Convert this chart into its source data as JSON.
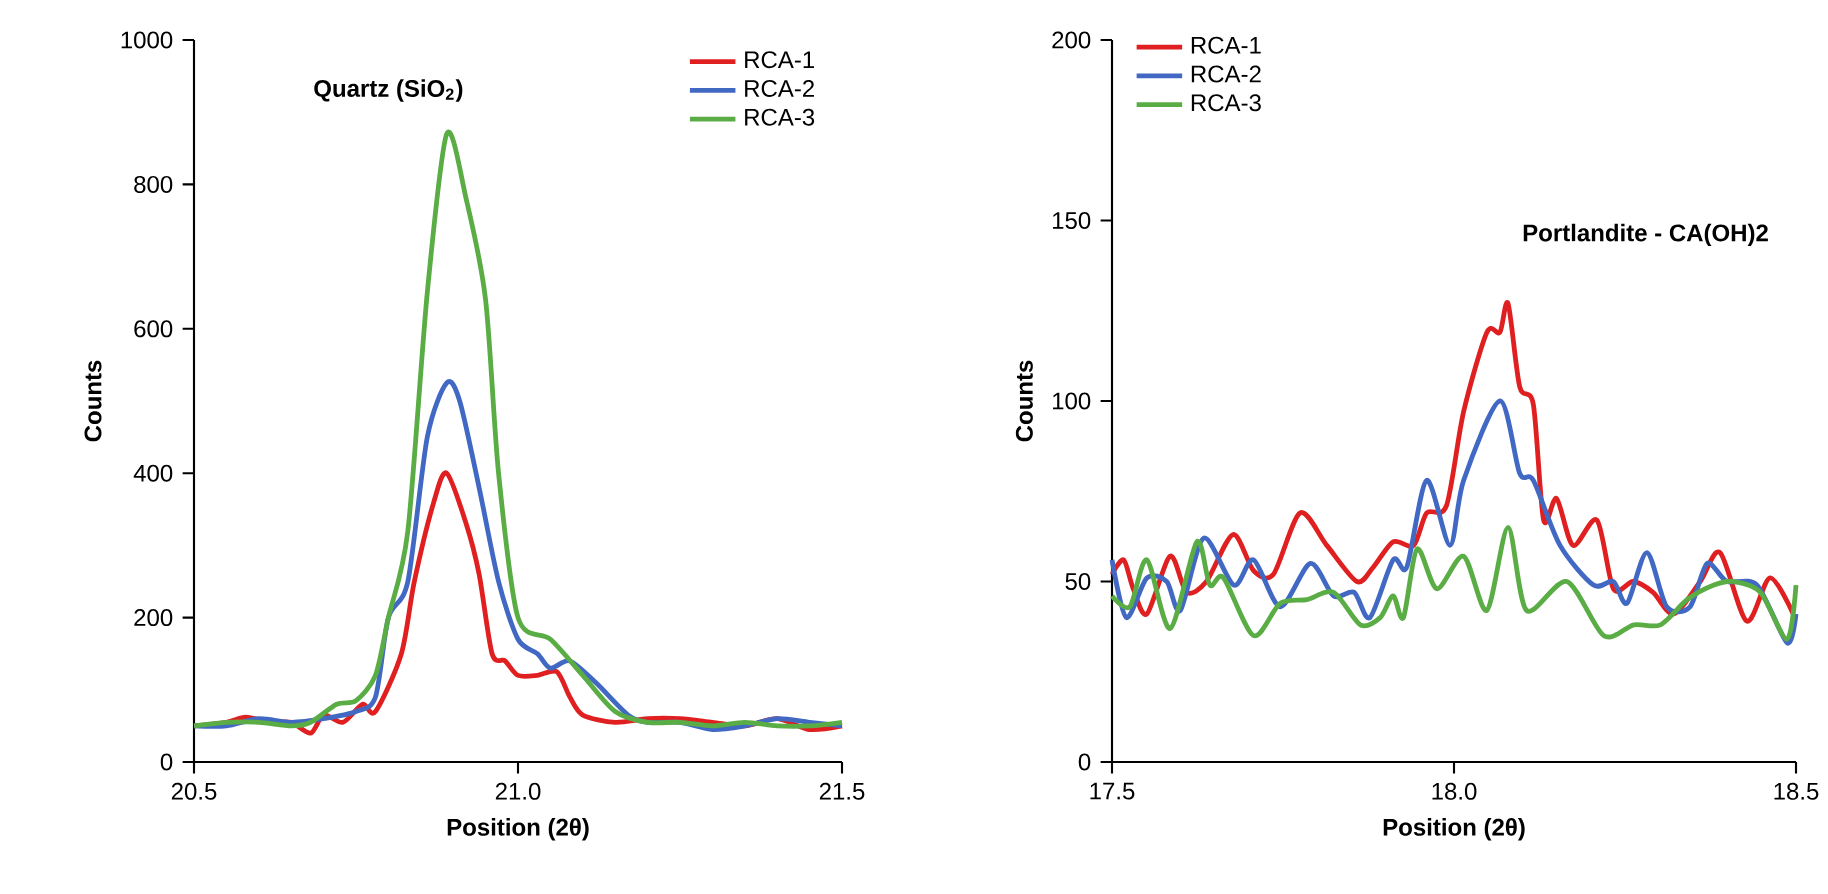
{
  "chart_data": [
    {
      "type": "line",
      "title": "Quartz (SiO$_{2}$)",
      "xlabel": "Position (2θ)",
      "ylabel": "Counts",
      "xlim": [
        20.5,
        21.5
      ],
      "xticks": [
        20.5,
        {
          "value": 21.0,
          "label": "21.0"
        },
        21.5
      ],
      "ylim": [
        0,
        1000
      ],
      "yticks": [
        0,
        200,
        400,
        600,
        800,
        1000
      ],
      "legend": "top right",
      "series": [
        {
          "name": "RCA-1",
          "color": "#e02020",
          "x": [
            20.5,
            20.55,
            20.58,
            20.62,
            20.65,
            20.68,
            20.7,
            20.73,
            20.76,
            20.78,
            20.82,
            20.84,
            20.87,
            20.89,
            20.92,
            20.94,
            20.96,
            20.98,
            21.0,
            21.03,
            21.06,
            21.08,
            21.1,
            21.15,
            21.2,
            21.25,
            21.3,
            21.35,
            21.4,
            21.45,
            21.5
          ],
          "values": [
            50,
            55,
            62,
            55,
            55,
            40,
            65,
            55,
            80,
            70,
            150,
            250,
            360,
            400,
            330,
            260,
            150,
            140,
            120,
            120,
            125,
            90,
            65,
            55,
            60,
            60,
            55,
            50,
            60,
            45,
            50
          ]
        },
        {
          "name": "RCA-2",
          "color": "#4169c4",
          "x": [
            20.5,
            20.55,
            20.6,
            20.65,
            20.7,
            20.75,
            20.78,
            20.8,
            20.83,
            20.86,
            20.89,
            20.91,
            20.94,
            20.97,
            21.0,
            21.03,
            21.05,
            21.08,
            21.12,
            21.17,
            21.2,
            21.25,
            21.3,
            21.35,
            21.4,
            21.45,
            21.5
          ],
          "values": [
            50,
            50,
            60,
            55,
            60,
            70,
            90,
            200,
            250,
            450,
            525,
            500,
            380,
            250,
            170,
            150,
            130,
            140,
            110,
            65,
            55,
            55,
            45,
            50,
            60,
            55,
            50
          ]
        },
        {
          "name": "RCA-3",
          "color": "#5aad45",
          "x": [
            20.5,
            20.55,
            20.6,
            20.65,
            20.68,
            20.72,
            20.75,
            20.78,
            20.8,
            20.83,
            20.86,
            20.89,
            20.92,
            20.95,
            20.97,
            21.0,
            21.05,
            21.1,
            21.15,
            21.2,
            21.25,
            21.3,
            21.35,
            21.4,
            21.45,
            21.5
          ],
          "values": [
            50,
            55,
            55,
            50,
            55,
            80,
            85,
            120,
            200,
            320,
            650,
            870,
            780,
            640,
            400,
            200,
            170,
            120,
            70,
            55,
            55,
            50,
            55,
            50,
            50,
            55
          ]
        }
      ]
    },
    {
      "type": "line",
      "title": "Portlandite - CA(OH)2",
      "xlabel": "Position (2θ)",
      "ylabel": "Counts",
      "xlim": [
        17.5,
        18.5
      ],
      "xticks": [
        17.5,
        {
          "value": 18.0,
          "label": "18.0"
        },
        18.5
      ],
      "ylim": [
        0,
        200
      ],
      "yticks": [
        0,
        50,
        100,
        150,
        200
      ],
      "legend": "top left",
      "series": [
        {
          "name": "RCA-1",
          "color": "#e02020",
          "x": [
            17.5,
            17.517,
            17.531,
            17.551,
            17.585,
            17.609,
            17.638,
            17.677,
            17.707,
            17.736,
            17.775,
            17.814,
            17.858,
            17.882,
            17.911,
            17.941,
            17.96,
            17.989,
            18.014,
            18.048,
            18.067,
            18.079,
            18.096,
            18.116,
            18.131,
            18.15,
            18.174,
            18.209,
            18.233,
            18.262,
            18.291,
            18.321,
            18.36,
            18.389,
            18.428,
            18.462,
            18.496
          ],
          "values": [
            52,
            56,
            48,
            41,
            57,
            47,
            50,
            63,
            53,
            52,
            69,
            60,
            50,
            54,
            61,
            60,
            69,
            71,
            97,
            119,
            119,
            127,
            104,
            99,
            67,
            73,
            60,
            67,
            48,
            50,
            47,
            41,
            50,
            58,
            39,
            51,
            41
          ]
        },
        {
          "name": "RCA-2",
          "color": "#4169c4",
          "x": [
            17.5,
            17.521,
            17.551,
            17.58,
            17.6,
            17.634,
            17.678,
            17.707,
            17.746,
            17.79,
            17.824,
            17.854,
            17.877,
            17.911,
            17.931,
            17.96,
            17.994,
            18.014,
            18.067,
            18.096,
            18.116,
            18.155,
            18.204,
            18.233,
            18.253,
            18.282,
            18.311,
            18.345,
            18.37,
            18.399,
            18.443,
            18.487,
            18.5
          ],
          "values": [
            56,
            40,
            51,
            50,
            42,
            62,
            49,
            56,
            43,
            55,
            46,
            47,
            40,
            56,
            54,
            78,
            60,
            78,
            100,
            80,
            78,
            60,
            49,
            50,
            44,
            58,
            43,
            43,
            55,
            50,
            49,
            33,
            41
          ]
        },
        {
          "name": "RCA-3",
          "color": "#5aad45",
          "x": [
            17.5,
            17.526,
            17.551,
            17.585,
            17.624,
            17.643,
            17.663,
            17.707,
            17.746,
            17.785,
            17.824,
            17.863,
            17.892,
            17.911,
            17.926,
            17.946,
            17.975,
            18.014,
            18.048,
            18.079,
            18.106,
            18.165,
            18.219,
            18.263,
            18.302,
            18.341,
            18.38,
            18.409,
            18.448,
            18.487,
            18.5
          ],
          "values": [
            46,
            43,
            56,
            37,
            61,
            49,
            51,
            35,
            44,
            45,
            47,
            38,
            40,
            46,
            40,
            59,
            48,
            57,
            42,
            65,
            42,
            50,
            35,
            38,
            38,
            45,
            49,
            50,
            47,
            34,
            49
          ]
        }
      ]
    }
  ]
}
